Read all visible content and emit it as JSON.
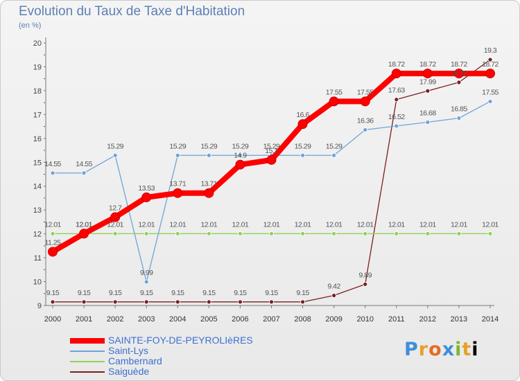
{
  "title": "Evolution du Taux de Taxe d'Habitation",
  "unit_label": "(en %)",
  "logo_text": "Proxiti",
  "chart_data": {
    "type": "line",
    "x": [
      2000,
      2001,
      2002,
      2003,
      2004,
      2005,
      2006,
      2007,
      2008,
      2009,
      2010,
      2011,
      2012,
      2013,
      2014
    ],
    "ylim": [
      9,
      20
    ],
    "yticks": [
      9,
      10,
      11,
      12,
      13,
      14,
      15,
      16,
      17,
      18,
      19,
      20
    ],
    "grid": false,
    "legend_position": "bottom-left",
    "series": [
      {
        "name": "SAINTE-FOY-DE-PEYROLIèRES",
        "color": "#ff0000",
        "values": [
          11.25,
          12.01,
          12.7,
          13.53,
          13.71,
          13.71,
          14.9,
          15.1,
          16.6,
          17.55,
          17.55,
          18.72,
          18.72,
          18.72,
          18.72
        ],
        "labels": [
          "11.25",
          "12.01",
          "12.7",
          "13.53",
          "13.71",
          "13.71",
          "14.9",
          "15.1",
          "16.6",
          "17.55",
          "17.55",
          "18.72",
          "18.72",
          "18.72",
          "18.72"
        ]
      },
      {
        "name": "Saint-Lys",
        "color": "#6fa3d8",
        "values": [
          14.55,
          14.55,
          15.29,
          9.99,
          15.29,
          15.29,
          15.29,
          15.29,
          15.29,
          15.29,
          16.36,
          16.52,
          16.68,
          16.85,
          17.55
        ],
        "labels": [
          "14.55",
          "14.55",
          "15.29",
          "9.99",
          "15.29",
          "15.29",
          "15.29",
          "15.29",
          "15.29",
          "15.29",
          "16.36",
          "16.52",
          "16.68",
          "16.85",
          "17.55"
        ]
      },
      {
        "name": "Cambernard",
        "color": "#8fd354",
        "values": [
          12.01,
          12.01,
          12.01,
          12.01,
          12.01,
          12.01,
          12.01,
          12.01,
          12.01,
          12.01,
          12.01,
          12.01,
          12.01,
          12.01,
          12.01
        ],
        "labels": [
          "12.01",
          "12.01",
          "12.01",
          "12.01",
          "12.01",
          "12.01",
          "12.01",
          "12.01",
          "12.01",
          "12.01",
          "12.01",
          "12.01",
          "12.01",
          "12.01",
          "12.01"
        ]
      },
      {
        "name": "Saiguède",
        "color": "#7a1e1e",
        "values": [
          9.15,
          9.15,
          9.15,
          9.15,
          9.15,
          9.15,
          9.15,
          9.15,
          9.15,
          9.42,
          9.89,
          17.63,
          17.99,
          18.35,
          19.3
        ],
        "labels": [
          "9.15",
          "9.15",
          "9.15",
          "9.15",
          "9.15",
          "9.15",
          "9.15",
          "9.15",
          "9.15",
          "9.42",
          "9.89",
          "17.63",
          "17.99",
          "18.35",
          "19.3"
        ]
      }
    ]
  }
}
